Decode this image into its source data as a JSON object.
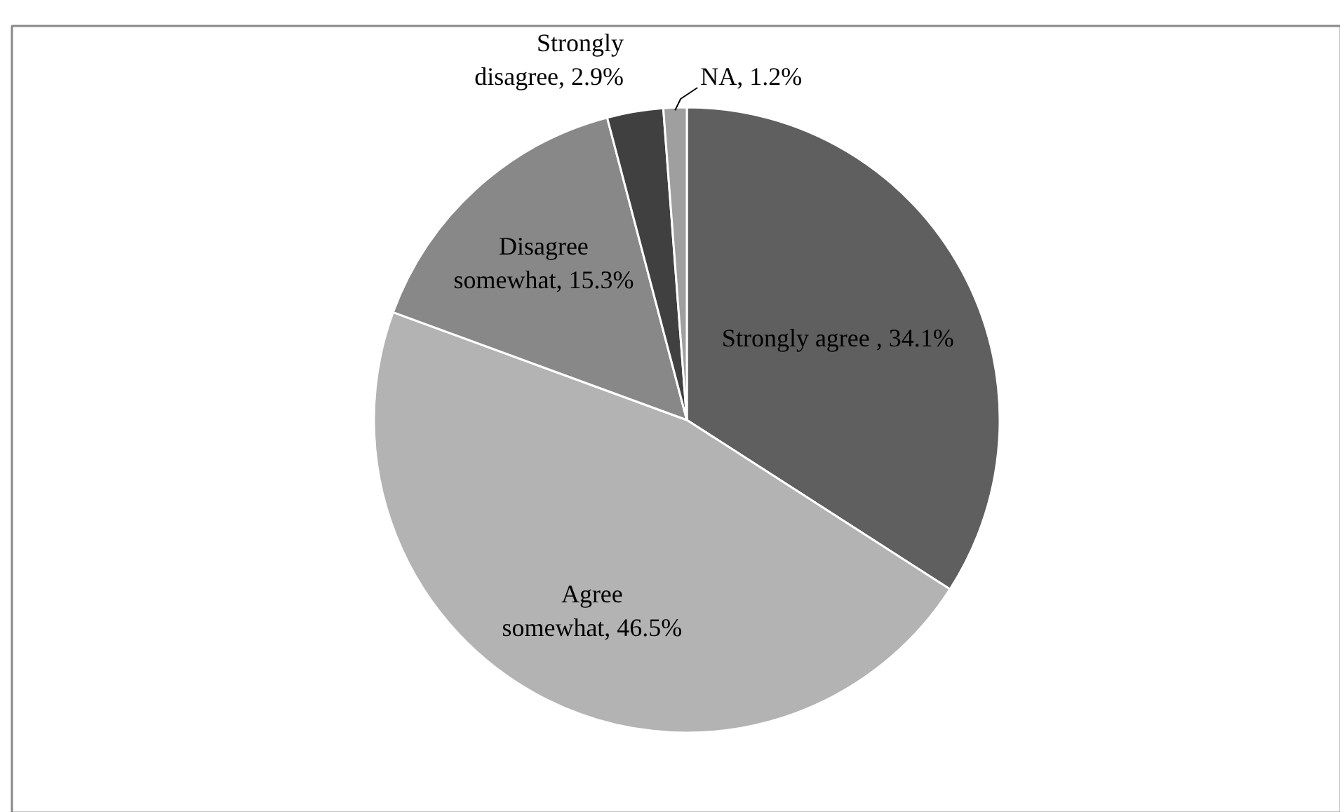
{
  "chart_data": {
    "type": "pie",
    "categories": [
      "Strongly agree ",
      "Agree somewhat",
      "Disagree somewhat",
      "Strongly disagree",
      "NA"
    ],
    "values": [
      34.1,
      46.5,
      15.3,
      2.9,
      1.2
    ],
    "value_labels": [
      "34.1%",
      "46.5%",
      "15.3%",
      "2.9%",
      "1.2%"
    ],
    "colors": [
      "#5f5f5f",
      "#b3b3b3",
      "#888888",
      "#404040",
      "#9f9f9f"
    ]
  }
}
